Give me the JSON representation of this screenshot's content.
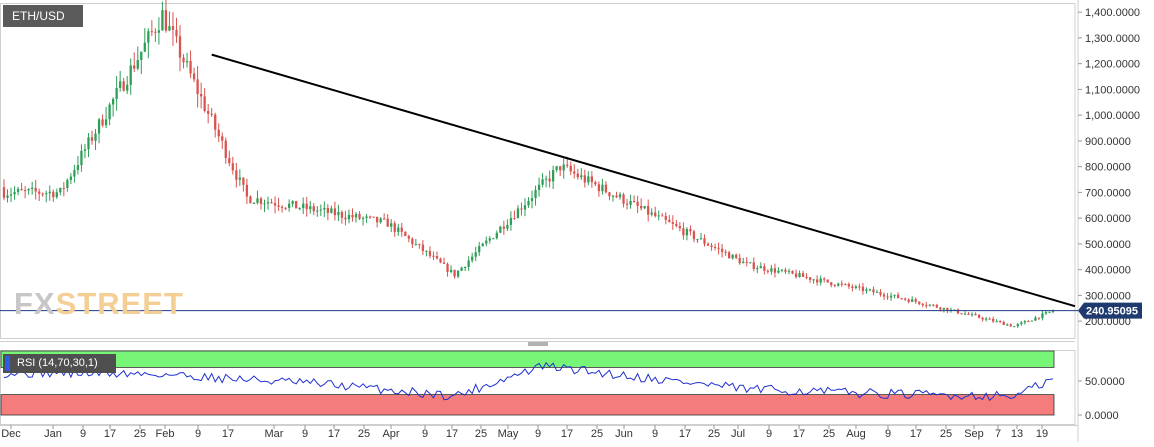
{
  "symbol": "ETH/USD",
  "rsi_label": "RSI (14,70,30,1)",
  "watermark": {
    "part1": "FX",
    "part2": "STREET"
  },
  "current_price": "240.95095",
  "colors": {
    "bull": "#2e9e59",
    "bear": "#d9534f",
    "trendline": "#000000",
    "rsi_line": "#2030d0",
    "overbought_band": "#77f577",
    "oversold_band": "#f57c7c",
    "price_line": "#1f3a8a",
    "badge": "#1f3a6e"
  },
  "chart_data": [
    {
      "type": "candlestick",
      "title": "ETH/USD",
      "ylim": [
        150,
        1420
      ],
      "y_ticks": [
        "1,400.0000",
        "1,300.0000",
        "1,200.0000",
        "1,100.0000",
        "1,000.0000",
        "900.0000",
        "800.0000",
        "700.0000",
        "600.0000",
        "500.0000",
        "400.0000",
        "300.0000",
        "200.0000"
      ],
      "x_ticks": [
        "Dec",
        "Jan",
        "9",
        "17",
        "25",
        "Feb",
        "9",
        "17",
        "Mar",
        "9",
        "17",
        "25",
        "Apr",
        "9",
        "17",
        "25",
        "May",
        "9",
        "17",
        "25",
        "Jun",
        "9",
        "17",
        "25",
        "Jul",
        "9",
        "17",
        "25",
        "Aug",
        "9",
        "17",
        "25",
        "Sep",
        "7",
        "13",
        "19"
      ],
      "last_price": 240.95,
      "key_points": [
        {
          "date": "2017-12-15",
          "close": 700
        },
        {
          "date": "2018-01-13",
          "close": 1390
        },
        {
          "date": "2018-02-06",
          "close": 680
        },
        {
          "date": "2018-03-18",
          "close": 580
        },
        {
          "date": "2018-04-06",
          "close": 380
        },
        {
          "date": "2018-05-06",
          "close": 800
        },
        {
          "date": "2018-06-28",
          "close": 420
        },
        {
          "date": "2018-08-14",
          "close": 280
        },
        {
          "date": "2018-09-12",
          "close": 180
        },
        {
          "date": "2018-09-23",
          "close": 240
        }
      ],
      "trendline": {
        "from": {
          "date": "Jan 27",
          "price": 1235
        },
        "to": {
          "date": "Sep 23",
          "price": 258
        }
      }
    },
    {
      "type": "line",
      "title": "RSI (14,70,30,1)",
      "ylim": [
        0,
        100
      ],
      "overbought": 70,
      "oversold": 30,
      "y_ticks": [
        "50.0000",
        "0.0000"
      ],
      "key_points": [
        {
          "date": "2017-12-15",
          "value": 62
        },
        {
          "date": "2018-01-13",
          "value": 60
        },
        {
          "date": "2018-03-01",
          "value": 45
        },
        {
          "date": "2018-04-06",
          "value": 28
        },
        {
          "date": "2018-05-01",
          "value": 72
        },
        {
          "date": "2018-06-28",
          "value": 38
        },
        {
          "date": "2018-08-14",
          "value": 30
        },
        {
          "date": "2018-09-12",
          "value": 28
        },
        {
          "date": "2018-09-23",
          "value": 52
        }
      ]
    }
  ]
}
